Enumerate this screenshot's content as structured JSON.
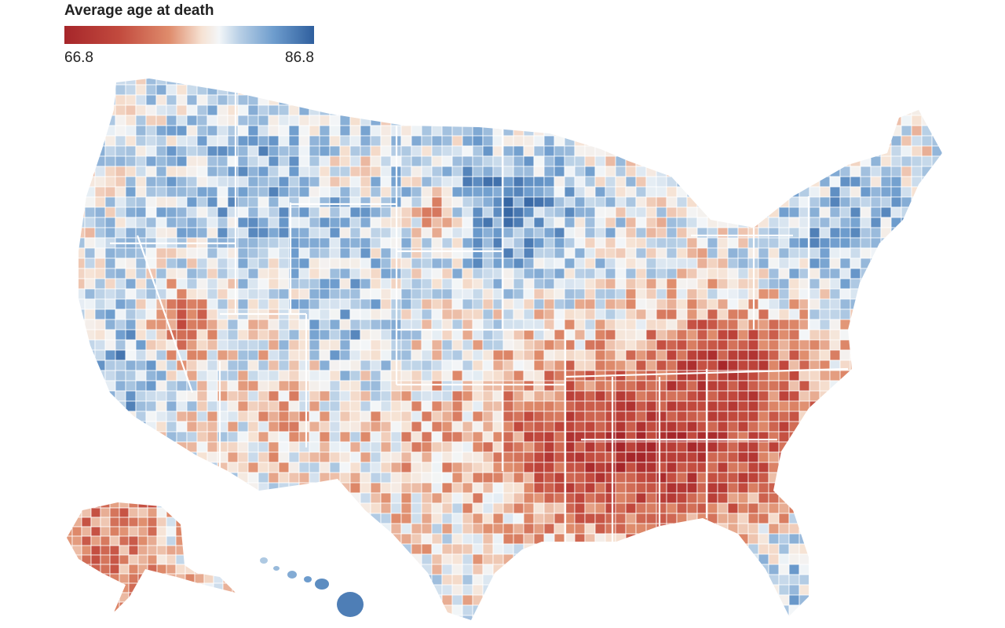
{
  "legend": {
    "title": "Average age at death",
    "min_label": "66.8",
    "max_label": "86.8",
    "color_low": "#a6262a",
    "color_mid": "#f3f6f8",
    "color_high": "#2f5f9e"
  },
  "map": {
    "region": "United States counties",
    "border_color": "#ffffff"
  }
}
